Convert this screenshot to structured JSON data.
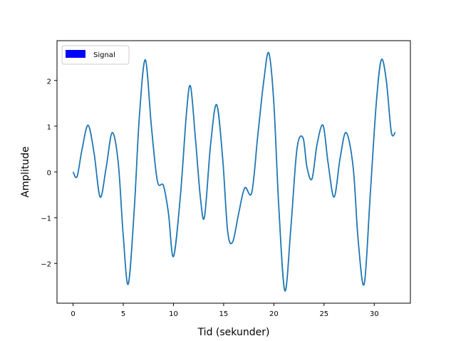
{
  "chart_data": {
    "type": "line",
    "xlabel": "Tid (sekunder)",
    "ylabel": "Amplitude",
    "xlim": [
      -1.6,
      33.6
    ],
    "ylim": [
      -2.87,
      2.87
    ],
    "x_ticks": [
      0,
      5,
      10,
      15,
      20,
      25,
      30
    ],
    "y_ticks": [
      -2,
      -1,
      0,
      1,
      2
    ],
    "x_tick_labels": [
      "0",
      "5",
      "10",
      "15",
      "20",
      "25",
      "30"
    ],
    "y_tick_labels": [
      "−2",
      "−1",
      "0",
      "1",
      "2"
    ],
    "grid": false,
    "legend": {
      "position": "top-left",
      "entries": [
        {
          "label": "Signal",
          "color": "#0000ff"
        }
      ]
    },
    "series": [
      {
        "name": "Signal",
        "color": "#1f77b4",
        "x": [
          0,
          0.4,
          0.9,
          1.5,
          2.1,
          2.7,
          3.3,
          3.9,
          4.5,
          5.0,
          5.5,
          6.1,
          6.6,
          7.2,
          7.8,
          8.4,
          9.0,
          9.5,
          10.0,
          10.7,
          11.3,
          11.7,
          12.2,
          12.7,
          13.1,
          13.7,
          14.3,
          14.9,
          15.4,
          15.9,
          16.5,
          17.1,
          17.8,
          18.4,
          19.0,
          19.5,
          20.0,
          20.5,
          21.1,
          21.7,
          22.3,
          22.9,
          23.3,
          23.8,
          24.3,
          24.9,
          25.4,
          26.0,
          26.6,
          27.2,
          27.9,
          28.4,
          29.0,
          29.6,
          30.2,
          30.7,
          31.2,
          31.7,
          32.1
        ],
        "y": [
          0,
          -0.1,
          0.5,
          1.02,
          0.4,
          -0.55,
          0.1,
          0.86,
          0.2,
          -1.4,
          -2.45,
          -0.8,
          1.2,
          2.45,
          1.0,
          -0.2,
          -0.3,
          -0.9,
          -1.85,
          -0.5,
          1.3,
          1.87,
          0.7,
          -0.6,
          -0.97,
          0.6,
          1.47,
          0.3,
          -1.3,
          -1.53,
          -0.9,
          -0.35,
          -0.45,
          0.8,
          2.0,
          2.6,
          1.5,
          -0.8,
          -2.6,
          -1.2,
          0.5,
          0.75,
          0.1,
          -0.15,
          0.6,
          1.02,
          0.2,
          -0.55,
          0.3,
          0.86,
          0.1,
          -1.5,
          -2.45,
          -0.5,
          1.5,
          2.45,
          2.0,
          0.87,
          0.87
        ]
      }
    ]
  }
}
